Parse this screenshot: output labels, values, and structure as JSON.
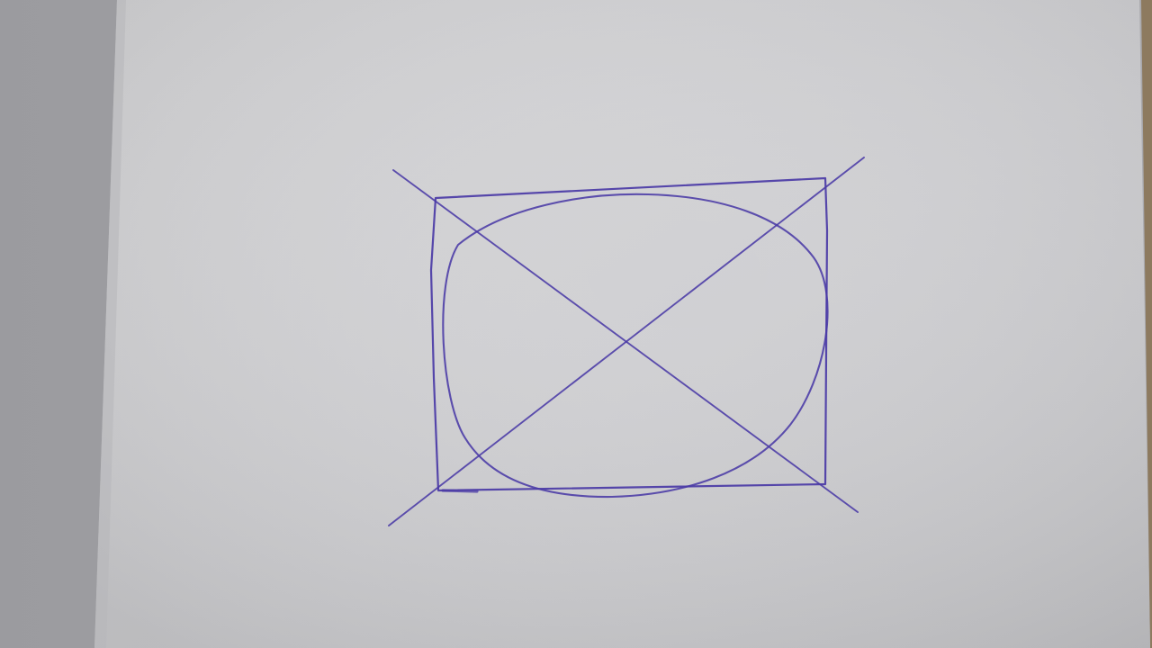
{
  "photo": {
    "subject": "",
    "colors": {
      "table_left": "#9f9fa3",
      "table_right": "#8d7a5f",
      "paper_light": "#d6d6d8",
      "paper_mid": "#cfcfd1",
      "paper_shadow": "#bdbdc0",
      "ink": "#4a3aa6"
    }
  }
}
